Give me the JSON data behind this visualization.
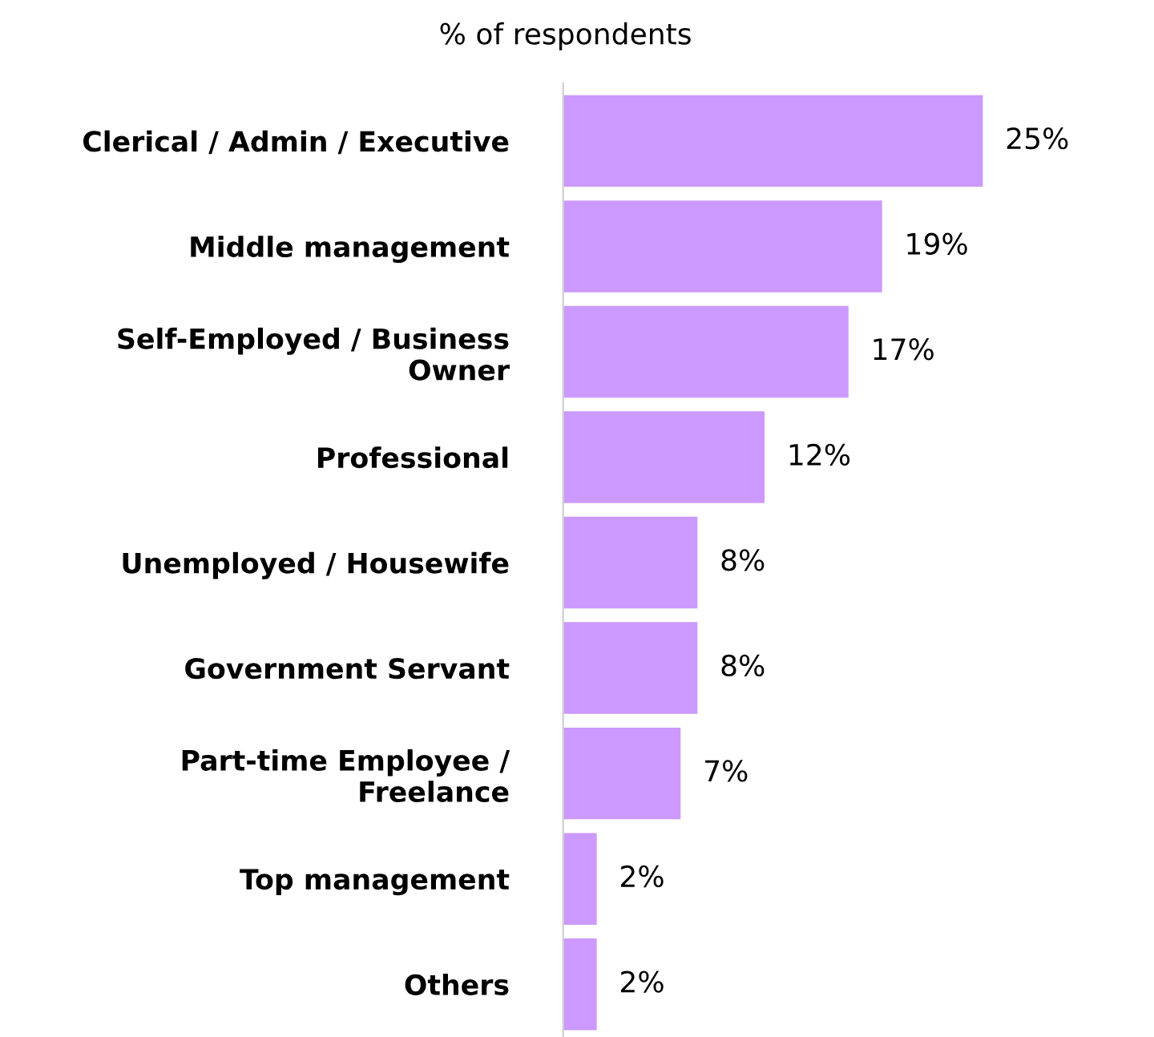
{
  "chart_data": {
    "type": "bar",
    "orientation": "horizontal",
    "title": "% of respondents",
    "categories": [
      "Clerical / Admin / Executive",
      "Middle management",
      "Self-Employed / Business\nOwner",
      "Professional",
      "Unemployed / Housewife",
      "Government Servant",
      "Part-time Employee /\nFreelance",
      "Top management",
      "Others"
    ],
    "values": [
      25,
      19,
      17,
      12,
      8,
      8,
      7,
      2,
      2
    ],
    "value_labels": [
      "25%",
      "19%",
      "17%",
      "12%",
      "8%",
      "8%",
      "7%",
      "2%",
      "2%"
    ],
    "color": "#cc99ff",
    "grid": false,
    "legend": false,
    "tick_labels": "y"
  }
}
